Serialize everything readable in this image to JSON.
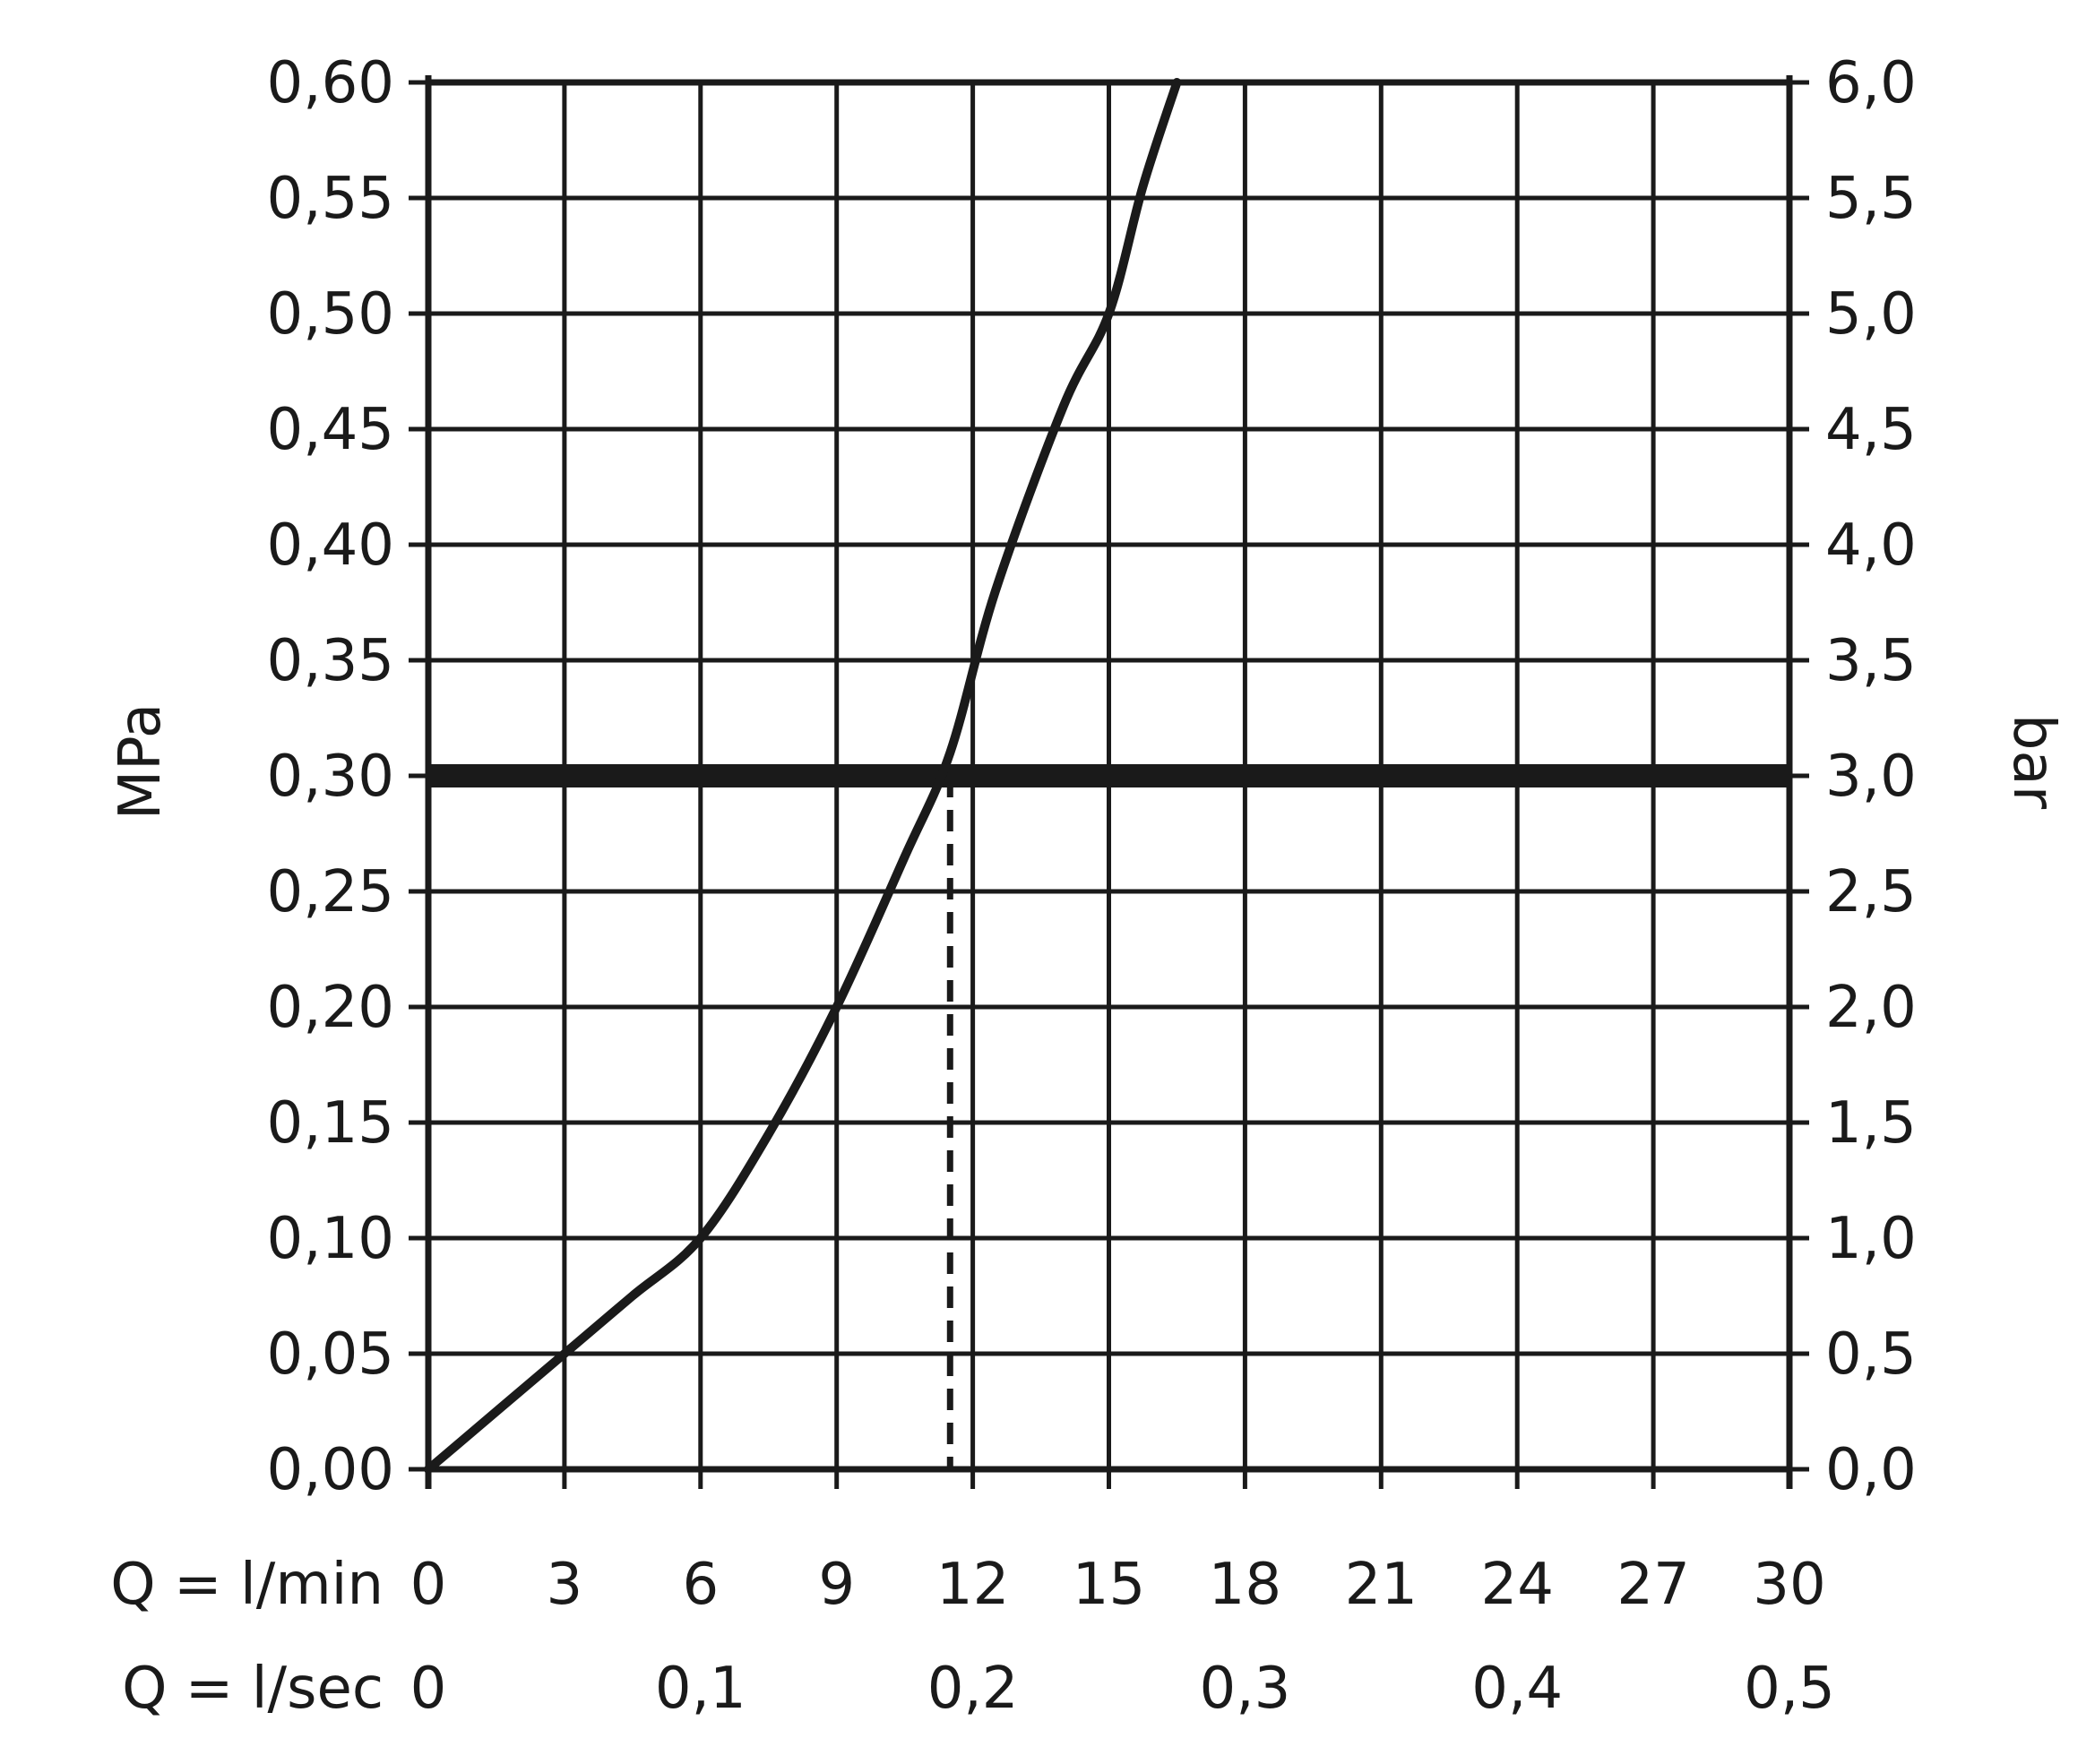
{
  "chart_data": {
    "type": "line",
    "title": "",
    "colors": {
      "ink": "#1a1a1a",
      "background": "#ffffff"
    },
    "y_left": {
      "label": "MPa",
      "range": [
        0,
        0.6
      ],
      "ticks": [
        "0,00",
        "0,05",
        "0,10",
        "0,15",
        "0,20",
        "0,25",
        "0,30",
        "0,35",
        "0,40",
        "0,45",
        "0,50",
        "0,55",
        "0,60"
      ]
    },
    "y_right": {
      "label": "bar",
      "range": [
        0,
        6
      ],
      "ticks": [
        "0,0",
        "0,5",
        "1,0",
        "1,5",
        "2,0",
        "2,5",
        "3,0",
        "3,5",
        "4,0",
        "4,5",
        "5,0",
        "5,5",
        "6,0"
      ]
    },
    "x_rows": [
      {
        "label": "Q = l/min",
        "range": [
          0,
          30
        ],
        "ticks": [
          {
            "x": 0,
            "text": "0"
          },
          {
            "x": 3,
            "text": "3"
          },
          {
            "x": 6,
            "text": "6"
          },
          {
            "x": 9,
            "text": "9"
          },
          {
            "x": 12,
            "text": "12"
          },
          {
            "x": 15,
            "text": "15"
          },
          {
            "x": 18,
            "text": "18"
          },
          {
            "x": 21,
            "text": "21"
          },
          {
            "x": 24,
            "text": "24"
          },
          {
            "x": 27,
            "text": "27"
          },
          {
            "x": 30,
            "text": "30"
          }
        ]
      },
      {
        "label": "Q = l/sec",
        "ticks": [
          {
            "x": 0,
            "text": "0"
          },
          {
            "x": 6,
            "text": "0,1"
          },
          {
            "x": 12,
            "text": "0,2"
          },
          {
            "x": 18,
            "text": "0,3"
          },
          {
            "x": 24,
            "text": "0,4"
          },
          {
            "x": 30,
            "text": "0,5"
          }
        ]
      }
    ],
    "grid": true,
    "series": [
      {
        "values": [
          [
            0,
            0
          ],
          [
            3,
            0.05
          ],
          [
            4.5,
            0.075
          ],
          [
            6,
            0.1
          ],
          [
            7.5,
            0.145
          ],
          [
            9,
            0.2
          ],
          [
            10.5,
            0.265
          ],
          [
            11.5,
            0.31
          ],
          [
            12.5,
            0.38
          ],
          [
            14,
            0.46
          ],
          [
            15,
            0.5
          ],
          [
            15.75,
            0.555
          ],
          [
            16.5,
            0.6
          ]
        ]
      }
    ],
    "reference_line": {
      "y": 0.3
    },
    "marker_line": {
      "x": 11.5,
      "y": 0.3,
      "style": "dashed"
    }
  }
}
